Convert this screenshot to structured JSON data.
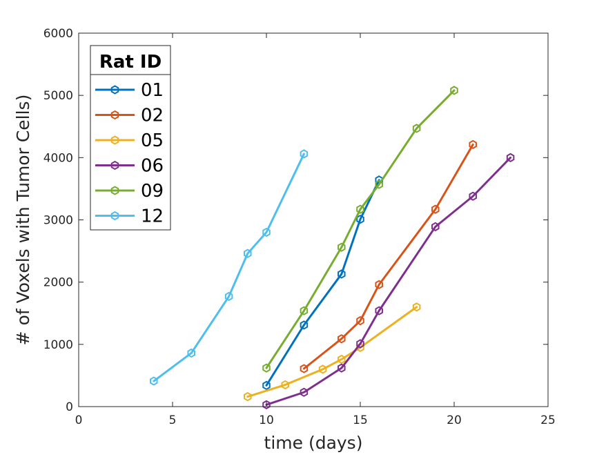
{
  "chart_data": {
    "type": "line",
    "title": "",
    "xlabel": "time (days)",
    "ylabel": "# of Voxels with Tumor Cells)",
    "xlim": [
      0,
      25
    ],
    "ylim": [
      0,
      6000
    ],
    "xticks": [
      "0",
      "5",
      "10",
      "15",
      "20",
      "25"
    ],
    "yticks": [
      "0",
      "1000",
      "2000",
      "3000",
      "4000",
      "5000",
      "6000"
    ],
    "grid": false,
    "legend": {
      "title": "Rat ID",
      "placement": "top-left"
    },
    "marker": "hexagon-open",
    "series": [
      {
        "name": "01",
        "color": "#0072BD",
        "x": [
          10,
          12,
          14,
          15,
          16
        ],
        "y": [
          340,
          1310,
          2130,
          3010,
          3640
        ]
      },
      {
        "name": "02",
        "color": "#D95319",
        "x": [
          12,
          14,
          15,
          16,
          19,
          21
        ],
        "y": [
          610,
          1090,
          1380,
          1960,
          3170,
          4210
        ]
      },
      {
        "name": "05",
        "color": "#EDB120",
        "x": [
          9,
          11,
          13,
          14,
          15,
          18
        ],
        "y": [
          160,
          350,
          600,
          760,
          950,
          1600
        ]
      },
      {
        "name": "06",
        "color": "#7E2F8E",
        "x": [
          10,
          12,
          14,
          15,
          16,
          19,
          21,
          23
        ],
        "y": [
          30,
          230,
          620,
          1010,
          1540,
          2890,
          3380,
          4000
        ]
      },
      {
        "name": "09",
        "color": "#77AC30",
        "x": [
          10,
          12,
          14,
          15,
          16,
          18,
          20
        ],
        "y": [
          620,
          1540,
          2560,
          3170,
          3570,
          4470,
          5080
        ]
      },
      {
        "name": "12",
        "color": "#4DBEEE",
        "x": [
          4,
          6,
          8,
          9,
          10,
          12
        ],
        "y": [
          410,
          860,
          1770,
          2460,
          2800,
          4060
        ]
      }
    ]
  }
}
